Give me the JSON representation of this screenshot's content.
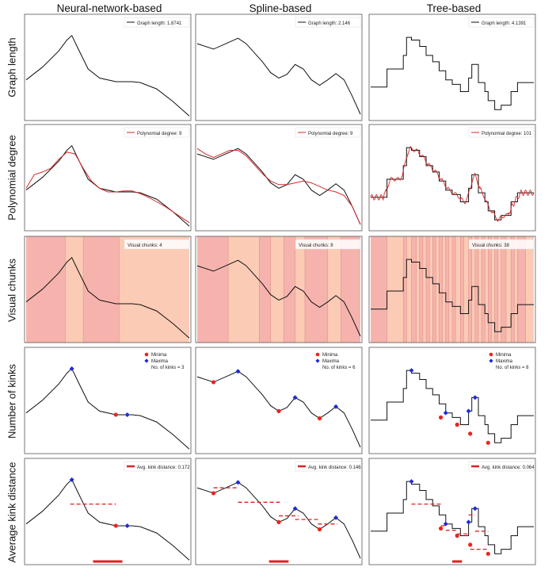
{
  "figure": {
    "columns": [
      "Neural-network-based",
      "Spline-based",
      "Tree-based"
    ],
    "rows": [
      "Graph length",
      "Polynomial degree",
      "Visual chunks",
      "Number of kinks",
      "Average kink distance"
    ]
  },
  "colors": {
    "curve": "#111111",
    "poly": "#d62728",
    "chunk_a": "#f6b3ad",
    "chunk_b": "#fbcbb5",
    "minima": "#e8251f",
    "maxima": "#1f2ad8",
    "kink_line": "#e02020",
    "frame": "#555555"
  },
  "chart_data": [
    {
      "type": "line",
      "row": "Graph length",
      "column": "Neural-network-based",
      "legend_text": "Graph length: 1.8741",
      "legend": "top-right",
      "x": [
        0,
        0.1,
        0.2,
        0.25,
        0.28,
        0.32,
        0.38,
        0.45,
        0.55,
        0.65,
        0.7,
        0.8,
        0.9,
        1
      ],
      "y": [
        0.38,
        0.52,
        0.7,
        0.82,
        0.87,
        0.72,
        0.5,
        0.4,
        0.36,
        0.36,
        0.35,
        0.28,
        0.14,
        -0.02
      ]
    },
    {
      "type": "line",
      "row": "Graph length",
      "column": "Spline-based",
      "legend_text": "Graph length: 2.146",
      "legend": "top-right",
      "x": [
        0,
        0.1,
        0.2,
        0.25,
        0.3,
        0.4,
        0.45,
        0.5,
        0.55,
        0.6,
        0.65,
        0.7,
        0.75,
        0.8,
        0.85,
        0.9,
        0.95,
        1
      ],
      "y": [
        0.78,
        0.72,
        0.8,
        0.84,
        0.78,
        0.58,
        0.46,
        0.4,
        0.44,
        0.55,
        0.5,
        0.38,
        0.32,
        0.38,
        0.45,
        0.38,
        0.2,
        0
      ]
    },
    {
      "type": "line",
      "row": "Graph length",
      "column": "Tree-based",
      "legend_text": "Graph length: 4.1391",
      "legend": "top-right",
      "x": [
        0,
        0.1,
        0.1,
        0.2,
        0.2,
        0.22,
        0.22,
        0.25,
        0.25,
        0.3,
        0.3,
        0.34,
        0.34,
        0.38,
        0.38,
        0.42,
        0.42,
        0.46,
        0.46,
        0.5,
        0.5,
        0.55,
        0.55,
        0.6,
        0.6,
        0.62,
        0.62,
        0.66,
        0.66,
        0.7,
        0.7,
        0.72,
        0.72,
        0.76,
        0.76,
        0.8,
        0.8,
        0.86,
        0.86,
        0.9,
        0.9,
        1
      ],
      "y": [
        0.3,
        0.3,
        0.5,
        0.5,
        0.65,
        0.65,
        0.85,
        0.85,
        0.82,
        0.82,
        0.75,
        0.75,
        0.65,
        0.65,
        0.58,
        0.58,
        0.48,
        0.48,
        0.38,
        0.38,
        0.33,
        0.33,
        0.25,
        0.25,
        0.4,
        0.4,
        0.55,
        0.55,
        0.35,
        0.35,
        0.25,
        0.25,
        0.15,
        0.15,
        0.05,
        0.05,
        0.1,
        0.1,
        0.25,
        0.25,
        0.35,
        0.35
      ]
    },
    {
      "type": "line",
      "row": "Polynomial degree",
      "column": "Neural-network-based",
      "legend_text": "Polynomial degree: 9",
      "legend": "top-right",
      "x": [
        0,
        0.1,
        0.2,
        0.25,
        0.28,
        0.32,
        0.38,
        0.45,
        0.55,
        0.65,
        0.7,
        0.8,
        0.9,
        1
      ],
      "y": [
        0.38,
        0.52,
        0.7,
        0.82,
        0.87,
        0.72,
        0.5,
        0.4,
        0.36,
        0.36,
        0.35,
        0.28,
        0.14,
        -0.02
      ],
      "poly_x": [
        0,
        0.05,
        0.1,
        0.15,
        0.2,
        0.25,
        0.3,
        0.35,
        0.4,
        0.45,
        0.5,
        0.55,
        0.6,
        0.65,
        0.7,
        0.75,
        0.8,
        0.85,
        0.9,
        0.95,
        1
      ],
      "poly_y": [
        0.4,
        0.55,
        0.58,
        0.62,
        0.72,
        0.8,
        0.78,
        0.62,
        0.48,
        0.4,
        0.36,
        0.36,
        0.37,
        0.37,
        0.34,
        0.3,
        0.25,
        0.2,
        0.14,
        0.08,
        0.02
      ]
    },
    {
      "type": "line",
      "row": "Polynomial degree",
      "column": "Spline-based",
      "legend_text": "Polynomial degree: 9",
      "legend": "top-right",
      "x": [
        0,
        0.1,
        0.2,
        0.25,
        0.3,
        0.4,
        0.45,
        0.5,
        0.55,
        0.6,
        0.65,
        0.7,
        0.75,
        0.8,
        0.85,
        0.9,
        0.95,
        1
      ],
      "y": [
        0.78,
        0.72,
        0.8,
        0.84,
        0.78,
        0.58,
        0.46,
        0.4,
        0.44,
        0.55,
        0.5,
        0.38,
        0.32,
        0.38,
        0.45,
        0.38,
        0.2,
        0
      ],
      "poly_x": [
        0,
        0.05,
        0.1,
        0.15,
        0.2,
        0.25,
        0.3,
        0.35,
        0.4,
        0.45,
        0.5,
        0.55,
        0.6,
        0.65,
        0.7,
        0.75,
        0.8,
        0.85,
        0.9,
        0.95,
        1
      ],
      "poly_y": [
        0.84,
        0.78,
        0.74,
        0.78,
        0.82,
        0.82,
        0.76,
        0.66,
        0.56,
        0.48,
        0.44,
        0.44,
        0.46,
        0.48,
        0.46,
        0.42,
        0.38,
        0.36,
        0.32,
        0.2,
        0
      ]
    },
    {
      "type": "line",
      "row": "Polynomial degree",
      "column": "Tree-based",
      "legend_text": "Polynomial degree: 101",
      "legend": "top-right",
      "x": [
        0,
        0.1,
        0.1,
        0.2,
        0.2,
        0.22,
        0.22,
        0.25,
        0.25,
        0.3,
        0.3,
        0.34,
        0.34,
        0.38,
        0.38,
        0.42,
        0.42,
        0.46,
        0.46,
        0.5,
        0.5,
        0.55,
        0.55,
        0.6,
        0.6,
        0.62,
        0.62,
        0.66,
        0.66,
        0.7,
        0.7,
        0.72,
        0.72,
        0.76,
        0.76,
        0.8,
        0.8,
        0.86,
        0.86,
        0.9,
        0.9,
        1
      ],
      "y": [
        0.3,
        0.3,
        0.5,
        0.5,
        0.65,
        0.65,
        0.85,
        0.85,
        0.82,
        0.82,
        0.75,
        0.75,
        0.65,
        0.65,
        0.58,
        0.58,
        0.48,
        0.48,
        0.38,
        0.38,
        0.33,
        0.33,
        0.25,
        0.25,
        0.4,
        0.4,
        0.55,
        0.55,
        0.35,
        0.35,
        0.25,
        0.25,
        0.15,
        0.15,
        0.05,
        0.05,
        0.1,
        0.1,
        0.25,
        0.25,
        0.35,
        0.35
      ],
      "poly_note": "high-order polynomial fit with ringing, drawn as red overlay"
    },
    {
      "type": "line",
      "row": "Visual chunks",
      "column": "Neural-network-based",
      "legend_text": "Visual chunks: 4",
      "legend": "top-right",
      "chunk_edges": [
        0,
        0.24,
        0.35,
        0.57,
        1
      ],
      "x": [
        0,
        0.1,
        0.2,
        0.25,
        0.28,
        0.32,
        0.38,
        0.45,
        0.55,
        0.65,
        0.7,
        0.8,
        0.9,
        1
      ],
      "y": [
        0.38,
        0.52,
        0.7,
        0.82,
        0.87,
        0.72,
        0.5,
        0.4,
        0.36,
        0.36,
        0.35,
        0.28,
        0.14,
        -0.02
      ]
    },
    {
      "type": "line",
      "row": "Visual chunks",
      "column": "Spline-based",
      "legend_text": "Visual chunks: 8",
      "legend": "top-right",
      "chunk_edges": [
        0,
        0.19,
        0.38,
        0.45,
        0.53,
        0.6,
        0.66,
        0.8,
        0.88,
        1
      ],
      "x": [
        0,
        0.1,
        0.2,
        0.25,
        0.3,
        0.4,
        0.45,
        0.5,
        0.55,
        0.6,
        0.65,
        0.7,
        0.75,
        0.8,
        0.85,
        0.9,
        0.95,
        1
      ],
      "y": [
        0.78,
        0.72,
        0.8,
        0.84,
        0.78,
        0.58,
        0.46,
        0.4,
        0.44,
        0.55,
        0.5,
        0.38,
        0.32,
        0.38,
        0.45,
        0.38,
        0.2,
        0
      ]
    },
    {
      "type": "line",
      "row": "Visual chunks",
      "column": "Tree-based",
      "legend_text": "Visual chunks: 38",
      "legend": "top-right",
      "chunk_edges": [
        0,
        0.1,
        0.2,
        0.22,
        0.25,
        0.28,
        0.3,
        0.32,
        0.34,
        0.36,
        0.38,
        0.4,
        0.42,
        0.44,
        0.46,
        0.48,
        0.5,
        0.52,
        0.55,
        0.57,
        0.6,
        0.62,
        0.64,
        0.66,
        0.68,
        0.7,
        0.72,
        0.74,
        0.76,
        0.78,
        0.8,
        0.83,
        0.86,
        0.88,
        0.9,
        0.95,
        1
      ],
      "x": [
        0,
        0.1,
        0.1,
        0.2,
        0.2,
        0.22,
        0.22,
        0.25,
        0.25,
        0.3,
        0.3,
        0.34,
        0.34,
        0.38,
        0.38,
        0.42,
        0.42,
        0.46,
        0.46,
        0.5,
        0.5,
        0.55,
        0.55,
        0.6,
        0.6,
        0.62,
        0.62,
        0.66,
        0.66,
        0.7,
        0.7,
        0.72,
        0.72,
        0.76,
        0.76,
        0.8,
        0.8,
        0.86,
        0.86,
        0.9,
        0.9,
        1
      ],
      "y": [
        0.3,
        0.3,
        0.5,
        0.5,
        0.65,
        0.65,
        0.85,
        0.85,
        0.82,
        0.82,
        0.75,
        0.75,
        0.65,
        0.65,
        0.58,
        0.58,
        0.48,
        0.48,
        0.38,
        0.38,
        0.33,
        0.33,
        0.25,
        0.25,
        0.4,
        0.4,
        0.55,
        0.55,
        0.35,
        0.35,
        0.25,
        0.25,
        0.15,
        0.15,
        0.05,
        0.05,
        0.1,
        0.1,
        0.25,
        0.25,
        0.35,
        0.35
      ]
    },
    {
      "type": "scatter",
      "row": "Number of kinks",
      "column": "Neural-network-based",
      "legend_entries": [
        "Minima",
        "Maxima",
        "No. of kinks = 3"
      ],
      "legend": "top-right",
      "x": [
        0,
        0.1,
        0.2,
        0.25,
        0.28,
        0.32,
        0.38,
        0.45,
        0.55,
        0.65,
        0.7,
        0.8,
        0.9,
        1
      ],
      "y": [
        0.38,
        0.52,
        0.7,
        0.82,
        0.87,
        0.72,
        0.5,
        0.4,
        0.36,
        0.36,
        0.35,
        0.28,
        0.14,
        -0.02
      ],
      "minima": [
        [
          0.55,
          0.36
        ]
      ],
      "maxima": [
        [
          0.28,
          0.87
        ],
        [
          0.62,
          0.36
        ]
      ]
    },
    {
      "type": "scatter",
      "row": "Number of kinks",
      "column": "Spline-based",
      "legend_entries": [
        "Minima",
        "Maxima",
        "No. of kinks = 6"
      ],
      "legend": "top-right",
      "x": [
        0,
        0.1,
        0.2,
        0.25,
        0.3,
        0.4,
        0.45,
        0.5,
        0.55,
        0.6,
        0.65,
        0.7,
        0.75,
        0.8,
        0.85,
        0.9,
        0.95,
        1
      ],
      "y": [
        0.78,
        0.72,
        0.8,
        0.84,
        0.78,
        0.58,
        0.46,
        0.4,
        0.44,
        0.55,
        0.5,
        0.38,
        0.32,
        0.38,
        0.45,
        0.38,
        0.2,
        0
      ],
      "minima": [
        [
          0.1,
          0.72
        ],
        [
          0.5,
          0.4
        ],
        [
          0.75,
          0.32
        ]
      ],
      "maxima": [
        [
          0.25,
          0.84
        ],
        [
          0.6,
          0.55
        ],
        [
          0.85,
          0.45
        ]
      ]
    },
    {
      "type": "scatter",
      "row": "Number of kinks",
      "column": "Tree-based",
      "legend_entries": [
        "Minima",
        "Maxima",
        "No. of kinks = 8"
      ],
      "legend": "top-right",
      "x": [
        0,
        0.1,
        0.1,
        0.2,
        0.2,
        0.22,
        0.22,
        0.25,
        0.25,
        0.3,
        0.3,
        0.34,
        0.34,
        0.38,
        0.38,
        0.42,
        0.42,
        0.46,
        0.46,
        0.5,
        0.5,
        0.55,
        0.55,
        0.6,
        0.6,
        0.62,
        0.62,
        0.66,
        0.66,
        0.7,
        0.7,
        0.72,
        0.72,
        0.76,
        0.76,
        0.8,
        0.8,
        0.86,
        0.86,
        0.9,
        0.9,
        1
      ],
      "y": [
        0.3,
        0.3,
        0.5,
        0.5,
        0.65,
        0.65,
        0.85,
        0.85,
        0.82,
        0.82,
        0.75,
        0.75,
        0.65,
        0.65,
        0.58,
        0.58,
        0.48,
        0.48,
        0.38,
        0.38,
        0.33,
        0.33,
        0.25,
        0.25,
        0.4,
        0.4,
        0.55,
        0.55,
        0.35,
        0.35,
        0.25,
        0.25,
        0.15,
        0.15,
        0.05,
        0.05,
        0.1,
        0.1,
        0.25,
        0.25,
        0.35,
        0.35
      ],
      "minima": [
        [
          0.43,
          0.33
        ],
        [
          0.53,
          0.25
        ],
        [
          0.61,
          0.15
        ],
        [
          0.72,
          0.05
        ]
      ],
      "maxima": [
        [
          0.25,
          0.85
        ],
        [
          0.46,
          0.38
        ],
        [
          0.6,
          0.4
        ],
        [
          0.64,
          0.55
        ]
      ]
    },
    {
      "type": "scatter",
      "row": "Average kink distance",
      "column": "Neural-network-based",
      "legend_text": "Avg. kink distance: 0.172",
      "legend": "top-right",
      "x": [
        0,
        0.1,
        0.2,
        0.25,
        0.28,
        0.32,
        0.38,
        0.45,
        0.55,
        0.65,
        0.7,
        0.8,
        0.9,
        1
      ],
      "y": [
        0.38,
        0.52,
        0.7,
        0.82,
        0.87,
        0.72,
        0.5,
        0.4,
        0.36,
        0.36,
        0.35,
        0.28,
        0.14,
        -0.02
      ],
      "minima": [
        [
          0.55,
          0.36
        ]
      ],
      "maxima": [
        [
          0.28,
          0.87
        ],
        [
          0.62,
          0.36
        ]
      ],
      "dashes": [
        [
          0.27,
          0.55,
          0.6
        ]
      ],
      "avg_bar": [
        0.41,
        0.59
      ]
    },
    {
      "type": "scatter",
      "row": "Average kink distance",
      "column": "Spline-based",
      "legend_text": "Avg. kink distance: 0.146",
      "legend": "top-right",
      "x": [
        0,
        0.1,
        0.2,
        0.25,
        0.3,
        0.4,
        0.45,
        0.5,
        0.55,
        0.6,
        0.65,
        0.7,
        0.75,
        0.8,
        0.85,
        0.9,
        0.95,
        1
      ],
      "y": [
        0.78,
        0.72,
        0.8,
        0.84,
        0.78,
        0.58,
        0.46,
        0.4,
        0.44,
        0.55,
        0.5,
        0.38,
        0.32,
        0.38,
        0.45,
        0.38,
        0.2,
        0
      ],
      "minima": [
        [
          0.1,
          0.72
        ],
        [
          0.5,
          0.4
        ],
        [
          0.75,
          0.32
        ]
      ],
      "maxima": [
        [
          0.25,
          0.84
        ],
        [
          0.6,
          0.55
        ],
        [
          0.85,
          0.45
        ]
      ],
      "dashes": [
        [
          0.1,
          0.25,
          0.78
        ],
        [
          0.25,
          0.52,
          0.62
        ],
        [
          0.5,
          0.62,
          0.47
        ],
        [
          0.6,
          0.74,
          0.43
        ],
        [
          0.74,
          0.86,
          0.38
        ]
      ],
      "avg_bar": [
        0.44,
        0.56
      ]
    },
    {
      "type": "scatter",
      "row": "Average kink distance",
      "column": "Tree-based",
      "legend_text": "Avg. kink distance: 0.064",
      "legend": "top-right",
      "x": [
        0,
        0.1,
        0.1,
        0.2,
        0.2,
        0.22,
        0.22,
        0.25,
        0.25,
        0.3,
        0.3,
        0.34,
        0.34,
        0.38,
        0.38,
        0.42,
        0.42,
        0.46,
        0.46,
        0.5,
        0.5,
        0.55,
        0.55,
        0.6,
        0.6,
        0.62,
        0.62,
        0.66,
        0.66,
        0.7,
        0.7,
        0.72,
        0.72,
        0.76,
        0.76,
        0.8,
        0.8,
        0.86,
        0.86,
        0.9,
        0.9,
        1
      ],
      "y": [
        0.3,
        0.3,
        0.5,
        0.5,
        0.65,
        0.65,
        0.85,
        0.85,
        0.82,
        0.82,
        0.75,
        0.75,
        0.65,
        0.65,
        0.58,
        0.58,
        0.48,
        0.48,
        0.38,
        0.38,
        0.33,
        0.33,
        0.25,
        0.25,
        0.4,
        0.4,
        0.55,
        0.55,
        0.35,
        0.35,
        0.25,
        0.25,
        0.15,
        0.15,
        0.05,
        0.05,
        0.1,
        0.1,
        0.25,
        0.25,
        0.35,
        0.35
      ],
      "minima": [
        [
          0.43,
          0.33
        ],
        [
          0.53,
          0.25
        ],
        [
          0.61,
          0.15
        ],
        [
          0.72,
          0.05
        ]
      ],
      "maxima": [
        [
          0.25,
          0.85
        ],
        [
          0.46,
          0.38
        ],
        [
          0.6,
          0.4
        ],
        [
          0.64,
          0.55
        ]
      ],
      "dashes": [
        [
          0.25,
          0.43,
          0.6
        ],
        [
          0.43,
          0.46,
          0.36
        ],
        [
          0.46,
          0.53,
          0.31
        ],
        [
          0.53,
          0.61,
          0.27
        ],
        [
          0.6,
          0.64,
          0.48
        ],
        [
          0.61,
          0.72,
          0.1
        ],
        [
          0.64,
          0.72,
          0.3
        ]
      ],
      "avg_bar": [
        0.5,
        0.56
      ]
    }
  ]
}
